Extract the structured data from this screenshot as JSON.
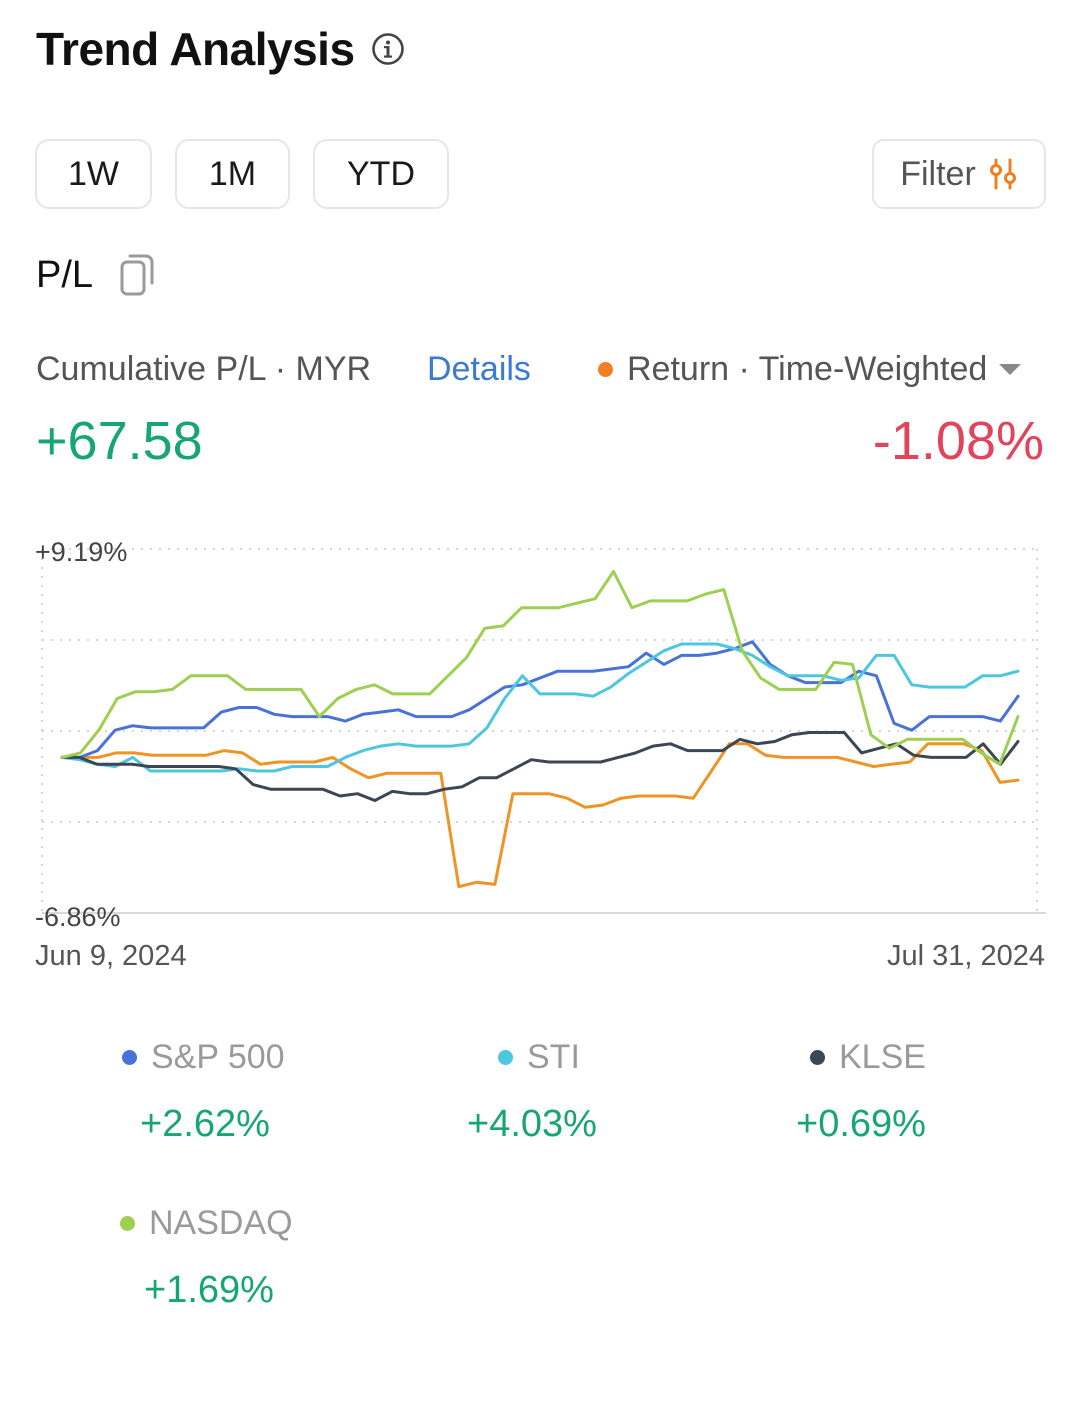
{
  "header": {
    "title": "Trend Analysis",
    "info_icon": "info-icon"
  },
  "range_buttons": [
    "1W",
    "1M",
    "YTD"
  ],
  "filter": {
    "label": "Filter",
    "icon": "sliders-icon",
    "icon_color": "#f07f24"
  },
  "pl": {
    "label": "P/L",
    "icon": "copy-icon"
  },
  "summary": {
    "cumulative_label": "Cumulative P/L · MYR",
    "details_label": "Details",
    "return_label": "Return · Time-Weighted",
    "return_dot_color": "#f07f24",
    "cumulative_value": "+67.58",
    "return_value": "-1.08%",
    "positive_color": "#17a574",
    "negative_color": "#e0455c"
  },
  "chart_data": {
    "type": "line",
    "y_max_label": "+9.19%",
    "y_min_label": "-6.86%",
    "ylim": [
      -6.86,
      9.19
    ],
    "x_start_label": "Jun 9, 2024",
    "x_end_label": "Jul 31, 2024",
    "grid": "dotted",
    "series": [
      {
        "name": "Return",
        "color": "#ee9425",
        "values": [
          0,
          0,
          0,
          0.2,
          0.2,
          0.1,
          0.1,
          0.1,
          0.1,
          0.3,
          0.2,
          -0.3,
          -0.2,
          -0.2,
          -0.2,
          0,
          -0.5,
          -0.9,
          -0.7,
          -0.7,
          -0.7,
          -0.7,
          -5.7,
          -5.5,
          -5.6,
          -1.6,
          -1.6,
          -1.6,
          -1.8,
          -2.2,
          -2.1,
          -1.8,
          -1.7,
          -1.7,
          -1.7,
          -1.8,
          -0.6,
          0.6,
          0.6,
          0.1,
          0,
          0,
          0,
          0,
          -0.2,
          -0.4,
          -0.3,
          -0.2,
          0.6,
          0.6,
          0.6,
          0.3,
          -1.1,
          -1.0
        ]
      },
      {
        "name": "S&P 500",
        "color": "#4872d6",
        "values": [
          0,
          0,
          0.3,
          1.2,
          1.4,
          1.3,
          1.3,
          1.3,
          1.3,
          2.0,
          2.2,
          2.2,
          1.9,
          1.8,
          1.8,
          1.8,
          1.6,
          1.9,
          2.0,
          2.1,
          1.8,
          1.8,
          1.8,
          2.1,
          2.6,
          3.1,
          3.2,
          3.5,
          3.8,
          3.8,
          3.8,
          3.9,
          4.0,
          4.6,
          4.1,
          4.5,
          4.5,
          4.6,
          4.8,
          5.1,
          4.1,
          3.6,
          3.3,
          3.3,
          3.3,
          3.8,
          3.6,
          1.5,
          1.2,
          1.8,
          1.8,
          1.8,
          1.8,
          1.6,
          2.7
        ]
      },
      {
        "name": "STI",
        "color": "#4dc6df",
        "values": [
          0,
          -0.1,
          -0.3,
          -0.4,
          0,
          -0.6,
          -0.6,
          -0.6,
          -0.6,
          -0.6,
          -0.5,
          -0.6,
          -0.6,
          -0.4,
          -0.4,
          -0.4,
          0,
          0.3,
          0.5,
          0.6,
          0.5,
          0.5,
          0.5,
          0.6,
          1.3,
          2.6,
          3.6,
          2.8,
          2.8,
          2.8,
          2.7,
          3.1,
          3.7,
          4.2,
          4.7,
          5.0,
          5.0,
          5.0,
          4.8,
          4.5,
          4.0,
          3.6,
          3.6,
          3.6,
          3.4,
          3.5,
          4.5,
          4.5,
          3.2,
          3.1,
          3.1,
          3.1,
          3.6,
          3.6,
          3.8
        ]
      },
      {
        "name": "KLSE",
        "color": "#3c4654",
        "values": [
          0,
          0,
          -0.3,
          -0.3,
          -0.3,
          -0.4,
          -0.4,
          -0.4,
          -0.4,
          -0.4,
          -0.5,
          -1.2,
          -1.4,
          -1.4,
          -1.4,
          -1.4,
          -1.7,
          -1.6,
          -1.9,
          -1.5,
          -1.6,
          -1.6,
          -1.4,
          -1.3,
          -0.9,
          -0.9,
          -0.5,
          -0.1,
          -0.2,
          -0.2,
          -0.2,
          -0.2,
          0,
          0.2,
          0.5,
          0.6,
          0.3,
          0.3,
          0.3,
          0.8,
          0.6,
          0.7,
          1.0,
          1.1,
          1.1,
          1.1,
          0.2,
          0.4,
          0.6,
          0.1,
          0,
          0,
          0,
          0.6,
          -0.3,
          0.7
        ]
      },
      {
        "name": "NASDAQ",
        "color": "#9fcf50",
        "values": [
          0,
          0.2,
          1.2,
          2.6,
          2.9,
          2.9,
          3.0,
          3.6,
          3.6,
          3.6,
          3.0,
          3.0,
          3.0,
          3.0,
          1.8,
          2.6,
          3.0,
          3.2,
          2.8,
          2.8,
          2.8,
          3.6,
          4.4,
          5.7,
          5.8,
          6.6,
          6.6,
          6.6,
          6.8,
          7.0,
          8.2,
          6.6,
          6.9,
          6.9,
          6.9,
          7.2,
          7.4,
          4.7,
          3.5,
          3.0,
          3.0,
          3.0,
          4.2,
          4.1,
          1.0,
          0.4,
          0.8,
          0.8,
          0.8,
          0.8,
          0.2,
          -0.3,
          1.8
        ]
      }
    ]
  },
  "legend": [
    {
      "name": "S&P 500",
      "value": "+2.62%",
      "color": "#4872d6"
    },
    {
      "name": "STI",
      "value": "+4.03%",
      "color": "#4dc6df"
    },
    {
      "name": "KLSE",
      "value": "+0.69%",
      "color": "#3c4654"
    },
    {
      "name": "NASDAQ",
      "value": "+1.69%",
      "color": "#9fcf50"
    }
  ]
}
